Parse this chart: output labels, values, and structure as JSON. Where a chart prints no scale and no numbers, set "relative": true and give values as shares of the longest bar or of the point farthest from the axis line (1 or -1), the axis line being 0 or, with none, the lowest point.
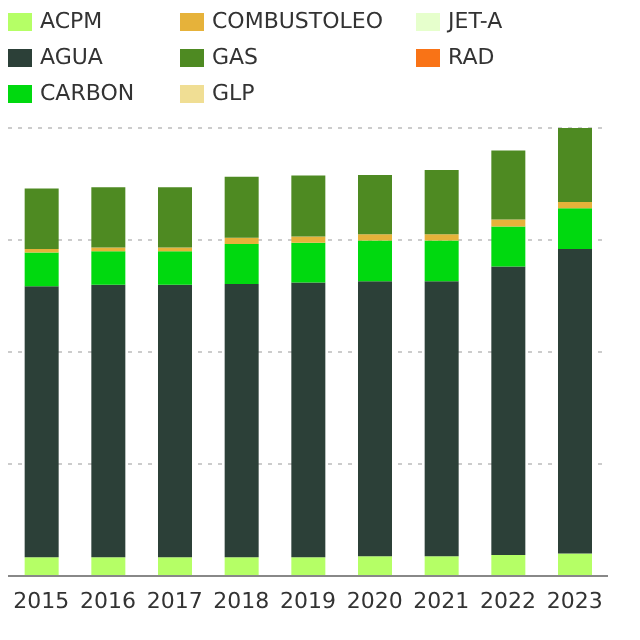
{
  "chart_data": {
    "type": "bar",
    "stacked": true,
    "relative": true,
    "grid": "y",
    "legend": "top",
    "categories": [
      "2015",
      "2016",
      "2017",
      "2018",
      "2019",
      "2020",
      "2021",
      "2022",
      "2023"
    ],
    "series": [
      {
        "name": "ACPM",
        "color": "#b5ff66",
        "values": [
          0.042,
          0.042,
          0.042,
          0.042,
          0.042,
          0.044,
          0.044,
          0.047,
          0.05
        ]
      },
      {
        "name": "AGUA",
        "color": "#2c4038",
        "values": [
          0.605,
          0.608,
          0.608,
          0.61,
          0.613,
          0.614,
          0.614,
          0.644,
          0.68
        ]
      },
      {
        "name": "CARBON",
        "color": "#00d90f",
        "values": [
          0.075,
          0.075,
          0.075,
          0.089,
          0.089,
          0.091,
          0.091,
          0.089,
          0.091
        ]
      },
      {
        "name": "COMBUSTOLEO",
        "color": "#e6b23a",
        "values": [
          0.008,
          0.008,
          0.008,
          0.014,
          0.014,
          0.014,
          0.014,
          0.016,
          0.014
        ]
      },
      {
        "name": "GAS",
        "color": "#4e8a22",
        "values": [
          0.135,
          0.135,
          0.135,
          0.136,
          0.136,
          0.132,
          0.143,
          0.154,
          0.165
        ]
      },
      {
        "name": "GLP",
        "color": "#f0de94",
        "values": [
          null,
          null,
          null,
          null,
          null,
          null,
          null,
          null,
          null
        ]
      },
      {
        "name": "JET-A",
        "color": "#e6ffcc",
        "values": [
          null,
          null,
          null,
          null,
          null,
          null,
          null,
          null,
          null
        ]
      },
      {
        "name": "RAD",
        "color": "#f97316",
        "values": [
          null,
          null,
          null,
          null,
          null,
          null,
          null,
          null,
          null
        ]
      }
    ]
  }
}
